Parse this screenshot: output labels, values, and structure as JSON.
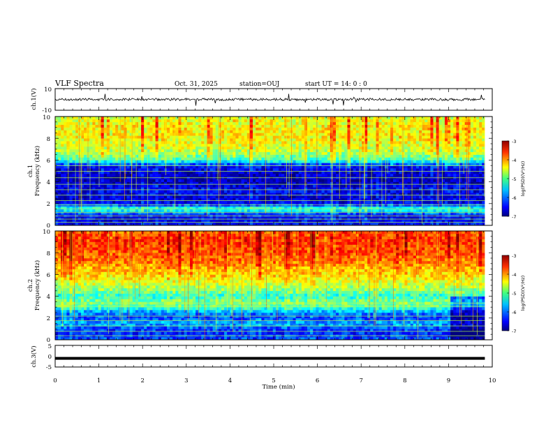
{
  "header": {
    "title": "VLF Spectra",
    "date": "Oct. 31, 2025",
    "station": "station=OUJ",
    "start": "start UT =  14: 0  : 0"
  },
  "colors": {
    "jet": [
      "#000080",
      "#0000ff",
      "#0080ff",
      "#00ffff",
      "#80ff80",
      "#ffff00",
      "#ff8000",
      "#ff0000",
      "#800000"
    ],
    "trace": "#000000"
  },
  "chart_data": [
    {
      "type": "line",
      "panel": "ch1-waveform",
      "ylabel": "ch.1(V)",
      "ylim": [
        -10,
        10
      ],
      "yticks": [
        "10",
        "-10"
      ],
      "baseline": 0
    },
    {
      "type": "heatmap",
      "panel": "ch1-spectrogram",
      "ylabel_top": "ch.1",
      "ylabel": "Frequency (kHz)",
      "ylim": [
        0,
        10
      ],
      "yticks": [
        "0",
        "2",
        "4",
        "6",
        "8",
        "10"
      ],
      "colorbar": {
        "label": "log(PSD)(V²/Hz)",
        "range": [
          -7,
          -3
        ],
        "ticks": [
          "-3",
          "-4",
          "-5",
          "-6",
          "-7"
        ]
      },
      "profile_freq_khz": [
        0,
        0.5,
        1,
        1.5,
        2,
        2.5,
        3,
        3.5,
        4,
        4.5,
        5,
        5.5,
        6,
        6.5,
        7,
        7.5,
        8,
        8.5,
        9,
        9.5,
        10
      ],
      "profile_logpsd": [
        -6.5,
        -6.6,
        -6.5,
        -5.2,
        -6.6,
        -6.7,
        -6.6,
        -6.6,
        -6.8,
        -6.8,
        -6.7,
        -6.5,
        -5.3,
        -5.0,
        -4.8,
        -4.7,
        -4.6,
        -4.6,
        -4.6,
        -4.7,
        -4.8
      ]
    },
    {
      "type": "heatmap",
      "panel": "ch2-spectrogram",
      "ylabel_top": "ch.2",
      "ylabel": "Frequency (kHz)",
      "ylim": [
        0,
        10
      ],
      "yticks": [
        "0",
        "2",
        "4",
        "6",
        "8",
        "10"
      ],
      "colorbar": {
        "label": "log(PSD)(V²/Hz)",
        "range": [
          -7,
          -3
        ],
        "ticks": [
          "-3",
          "-4",
          "-5",
          "-6",
          "-7"
        ]
      },
      "profile_freq_khz": [
        0,
        0.5,
        1,
        1.5,
        2,
        2.5,
        3,
        3.5,
        4,
        4.5,
        5,
        5.5,
        6,
        6.5,
        7,
        7.5,
        8,
        8.5,
        9,
        9.5,
        10
      ],
      "profile_logpsd": [
        -6.2,
        -6.4,
        -6.3,
        -5.8,
        -6.3,
        -6.0,
        -5.2,
        -5.0,
        -5.4,
        -5.0,
        -4.8,
        -4.6,
        -4.4,
        -4.3,
        -4.1,
        -4.0,
        -3.9,
        -3.9,
        -3.8,
        -3.9,
        -4.0
      ]
    },
    {
      "type": "line",
      "panel": "ch3-waveform",
      "ylabel": "ch.3(V)",
      "ylim": [
        -5,
        5
      ],
      "yticks": [
        "5",
        "0",
        "-5"
      ],
      "baseline": -1
    }
  ],
  "xaxis": {
    "label": "Time (min)",
    "range": [
      0,
      10
    ],
    "ticks": [
      "0",
      "1",
      "2",
      "3",
      "4",
      "5",
      "6",
      "7",
      "8",
      "9",
      "10"
    ],
    "data_end": 9.83
  }
}
